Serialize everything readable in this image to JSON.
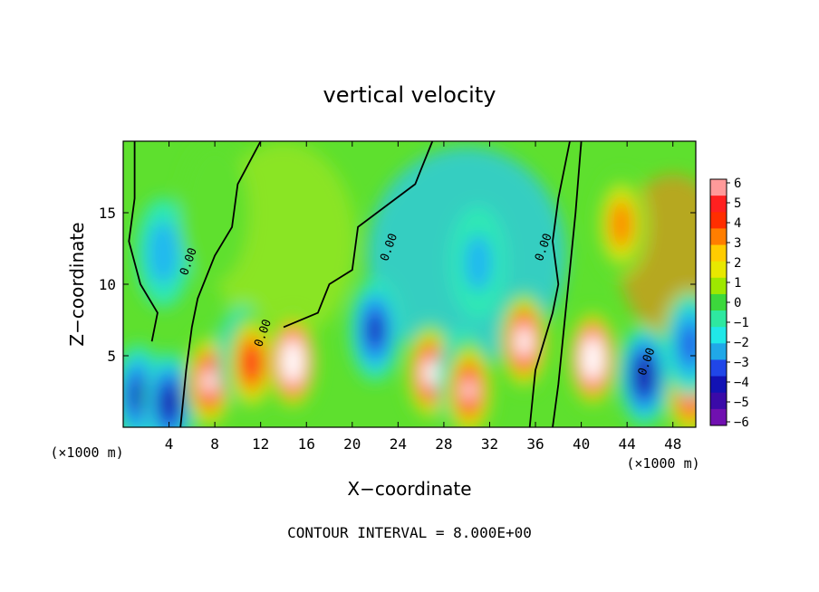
{
  "chart_data": {
    "type": "heatmap",
    "title": "vertical velocity",
    "xlabel": "X−coordinate",
    "ylabel": "Z−coordinate",
    "x_unit_left": "(×1000 m)",
    "x_unit_right": "(×1000 m)",
    "xlim": [
      0,
      50
    ],
    "ylim": [
      0,
      20
    ],
    "x_ticks": [
      4,
      8,
      12,
      16,
      20,
      24,
      28,
      32,
      36,
      40,
      44,
      48
    ],
    "y_ticks": [
      5,
      10,
      15
    ],
    "colorbar": {
      "min": -6,
      "max": 6,
      "labels": [
        "6",
        "5",
        "4",
        "3",
        "2",
        "1",
        "0",
        "−1",
        "−2",
        "−3",
        "−4",
        "−5",
        "−6"
      ],
      "colors": [
        "#ff9a9a",
        "#ff2020",
        "#ff2e00",
        "#ff7e00",
        "#ffcc00",
        "#e8e800",
        "#9ee800",
        "#3cd83c",
        "#2ee8a0",
        "#20e8e8",
        "#20a8e8",
        "#2046e8",
        "#1212b4",
        "#3a0aa8",
        "#7010b0"
      ]
    },
    "contour_label": "0.00",
    "contour_interval_text": "CONTOUR INTERVAL = 8.000E+00",
    "features": [
      {
        "x": 1.3,
        "z": 2.2,
        "w": -5.5
      },
      {
        "x": 4.0,
        "z": 1.7,
        "w": -6.5
      },
      {
        "x": 7.5,
        "z": 3.2,
        "w": 7.5
      },
      {
        "x": 10.5,
        "z": 5.0,
        "w": -6.0
      },
      {
        "x": 11.2,
        "z": 4.5,
        "w": 6.5
      },
      {
        "x": 14.8,
        "z": 4.6,
        "w": 11.0
      },
      {
        "x": 22.0,
        "z": 6.8,
        "w": -5.5
      },
      {
        "x": 26.8,
        "z": 3.8,
        "w": 8.0
      },
      {
        "x": 29.6,
        "z": 3.3,
        "w": -6.0
      },
      {
        "x": 30.2,
        "z": 2.6,
        "w": 7.0
      },
      {
        "x": 35.0,
        "z": 6.0,
        "w": 8.5
      },
      {
        "x": 41.0,
        "z": 4.8,
        "w": 11.0
      },
      {
        "x": 43.5,
        "z": 14.2,
        "w": 5.0
      },
      {
        "x": 45.5,
        "z": 3.6,
        "w": -7.0
      },
      {
        "x": 49.5,
        "z": 2.5,
        "w": 7.0
      },
      {
        "x": 3.5,
        "z": 12.2,
        "w": -3.0
      },
      {
        "x": 31.0,
        "z": 11.5,
        "w": -2.5
      },
      {
        "x": 8.0,
        "z": 15.0,
        "w": 1.0
      },
      {
        "x": 49.5,
        "z": 5.8,
        "w": -4.5
      }
    ]
  }
}
